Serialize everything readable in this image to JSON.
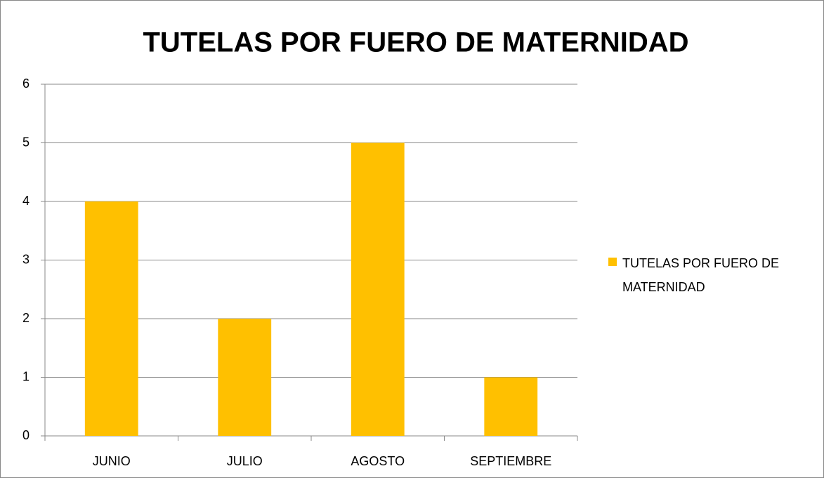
{
  "chart_data": {
    "type": "bar",
    "title": "TUTELAS POR FUERO DE MATERNIDAD",
    "categories": [
      "JUNIO",
      "JULIO",
      "AGOSTO",
      "SEPTIEMBRE"
    ],
    "series": [
      {
        "name": "TUTELAS POR FUERO DE MATERNIDAD",
        "color": "#ffc000",
        "values": [
          4,
          2,
          5,
          1
        ]
      }
    ],
    "ylim": [
      0,
      6
    ],
    "yticks": [
      0,
      1,
      2,
      3,
      4,
      5,
      6
    ],
    "grid": true,
    "legend": "right"
  }
}
